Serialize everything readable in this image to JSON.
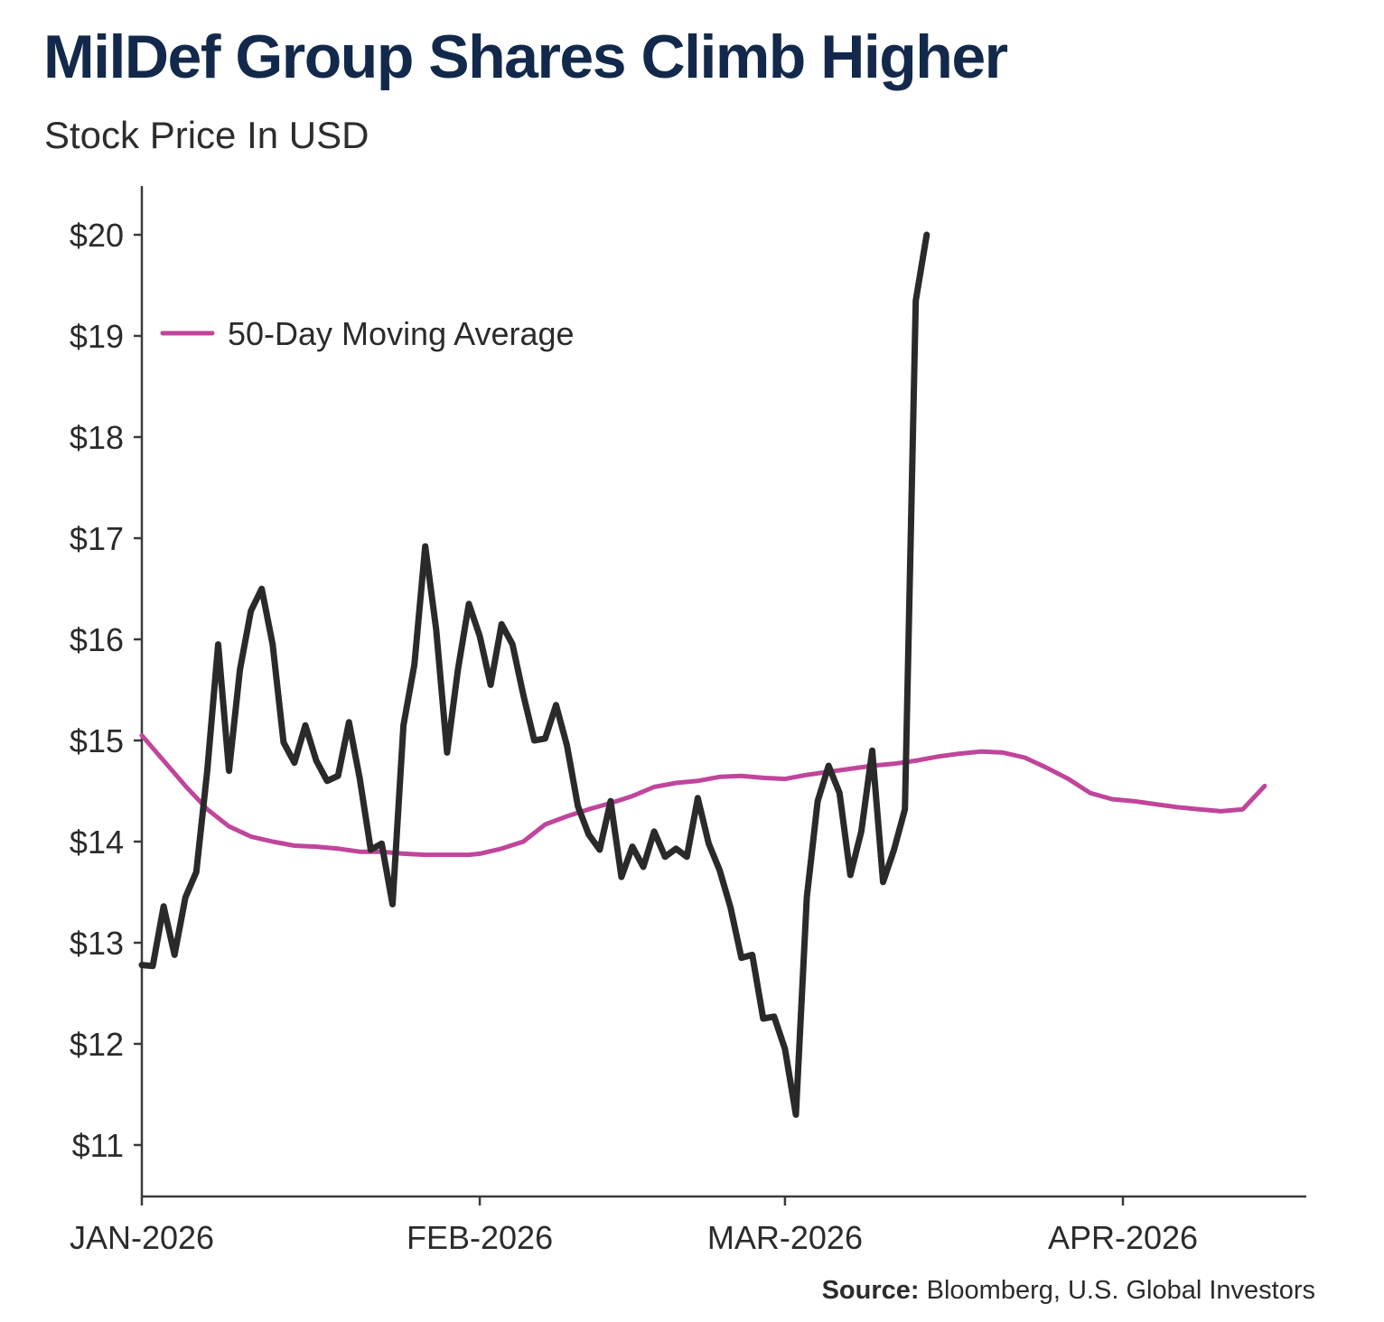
{
  "chart_data": {
    "type": "line",
    "title": "MilDef Group Shares Climb Higher",
    "subtitle": "Stock Price In USD",
    "xlabel": "",
    "ylabel": "",
    "x_tick_labels": [
      "JAN-2026",
      "FEB-2026",
      "MAR-2026",
      "APR-2026"
    ],
    "y_tick_labels": [
      "$11",
      "$12",
      "$13",
      "$14",
      "$15",
      "$16",
      "$17",
      "$18",
      "$19",
      "$20"
    ],
    "ylim": [
      10.5,
      20.5
    ],
    "grid": false,
    "legend": {
      "position": "top-left"
    },
    "series": [
      {
        "name": "",
        "color": "#2a2a2a",
        "points": [
          [
            "2026-01-01",
            12.78
          ],
          [
            "2026-01-02",
            12.77
          ],
          [
            "2026-01-03",
            13.36
          ],
          [
            "2026-01-04",
            12.88
          ],
          [
            "2026-01-05",
            13.45
          ],
          [
            "2026-01-06",
            13.7
          ],
          [
            "2026-01-07",
            14.7
          ],
          [
            "2026-01-08",
            15.95
          ],
          [
            "2026-01-09",
            14.7
          ],
          [
            "2026-01-10",
            15.7
          ],
          [
            "2026-01-11",
            16.28
          ],
          [
            "2026-01-12",
            16.5
          ],
          [
            "2026-01-13",
            15.95
          ],
          [
            "2026-01-14",
            14.98
          ],
          [
            "2026-01-15",
            14.78
          ],
          [
            "2026-01-16",
            15.15
          ],
          [
            "2026-01-17",
            14.8
          ],
          [
            "2026-01-18",
            14.6
          ],
          [
            "2026-01-19",
            14.65
          ],
          [
            "2026-01-20",
            15.18
          ],
          [
            "2026-01-21",
            14.62
          ],
          [
            "2026-01-22",
            13.92
          ],
          [
            "2026-01-23",
            13.98
          ],
          [
            "2026-01-24",
            13.38
          ],
          [
            "2026-01-25",
            15.15
          ],
          [
            "2026-01-26",
            15.75
          ],
          [
            "2026-01-27",
            16.92
          ],
          [
            "2026-01-28",
            16.1
          ],
          [
            "2026-01-29",
            14.88
          ],
          [
            "2026-01-30",
            15.7
          ],
          [
            "2026-01-31",
            16.35
          ],
          [
            "2026-02-01",
            16.03
          ],
          [
            "2026-02-02",
            15.55
          ],
          [
            "2026-02-03",
            16.15
          ],
          [
            "2026-02-04",
            15.95
          ],
          [
            "2026-02-05",
            15.45
          ],
          [
            "2026-02-06",
            15.0
          ],
          [
            "2026-02-07",
            15.02
          ],
          [
            "2026-02-08",
            15.35
          ],
          [
            "2026-02-09",
            14.95
          ],
          [
            "2026-02-10",
            14.35
          ],
          [
            "2026-02-11",
            14.07
          ],
          [
            "2026-02-12",
            13.92
          ],
          [
            "2026-02-13",
            14.4
          ],
          [
            "2026-02-14",
            13.65
          ],
          [
            "2026-02-15",
            13.95
          ],
          [
            "2026-02-16",
            13.75
          ],
          [
            "2026-02-17",
            14.1
          ],
          [
            "2026-02-18",
            13.85
          ],
          [
            "2026-02-19",
            13.93
          ],
          [
            "2026-02-20",
            13.85
          ],
          [
            "2026-02-21",
            14.43
          ],
          [
            "2026-02-22",
            13.98
          ],
          [
            "2026-02-23",
            13.72
          ],
          [
            "2026-02-24",
            13.35
          ],
          [
            "2026-02-25",
            12.85
          ],
          [
            "2026-02-26",
            12.88
          ],
          [
            "2026-02-27",
            12.25
          ],
          [
            "2026-02-28",
            12.27
          ],
          [
            "2026-03-01",
            11.95
          ],
          [
            "2026-03-02",
            11.3
          ],
          [
            "2026-03-03",
            13.45
          ],
          [
            "2026-03-04",
            14.4
          ],
          [
            "2026-03-05",
            14.75
          ],
          [
            "2026-03-06",
            14.48
          ],
          [
            "2026-03-07",
            13.67
          ],
          [
            "2026-03-08",
            14.1
          ],
          [
            "2026-03-09",
            14.9
          ],
          [
            "2026-03-10",
            13.6
          ],
          [
            "2026-03-11",
            13.92
          ],
          [
            "2026-03-12",
            14.32
          ],
          [
            "2026-03-13",
            19.35
          ],
          [
            "2026-03-14",
            20.0
          ]
        ]
      },
      {
        "name": "50-Day Moving Average",
        "color": "#c0459b",
        "points": [
          [
            "2026-01-01",
            15.05
          ],
          [
            "2026-01-03",
            14.8
          ],
          [
            "2026-01-05",
            14.55
          ],
          [
            "2026-01-07",
            14.32
          ],
          [
            "2026-01-09",
            14.15
          ],
          [
            "2026-01-11",
            14.05
          ],
          [
            "2026-01-13",
            14.0
          ],
          [
            "2026-01-15",
            13.96
          ],
          [
            "2026-01-17",
            13.95
          ],
          [
            "2026-01-19",
            13.93
          ],
          [
            "2026-01-21",
            13.9
          ],
          [
            "2026-01-23",
            13.9
          ],
          [
            "2026-01-25",
            13.88
          ],
          [
            "2026-01-27",
            13.87
          ],
          [
            "2026-01-29",
            13.87
          ],
          [
            "2026-01-31",
            13.87
          ],
          [
            "2026-02-01",
            13.88
          ],
          [
            "2026-02-03",
            13.93
          ],
          [
            "2026-02-05",
            14.0
          ],
          [
            "2026-02-07",
            14.17
          ],
          [
            "2026-02-09",
            14.25
          ],
          [
            "2026-02-11",
            14.32
          ],
          [
            "2026-02-13",
            14.38
          ],
          [
            "2026-02-15",
            14.45
          ],
          [
            "2026-02-17",
            14.54
          ],
          [
            "2026-02-19",
            14.58
          ],
          [
            "2026-02-21",
            14.6
          ],
          [
            "2026-02-23",
            14.64
          ],
          [
            "2026-02-25",
            14.65
          ],
          [
            "2026-02-27",
            14.63
          ],
          [
            "2026-03-01",
            14.62
          ],
          [
            "2026-03-03",
            14.66
          ],
          [
            "2026-03-05",
            14.69
          ],
          [
            "2026-03-07",
            14.72
          ],
          [
            "2026-03-09",
            14.75
          ],
          [
            "2026-03-11",
            14.77
          ],
          [
            "2026-03-13",
            14.8
          ],
          [
            "2026-03-15",
            14.84
          ],
          [
            "2026-03-17",
            14.87
          ],
          [
            "2026-03-19",
            14.89
          ],
          [
            "2026-03-21",
            14.88
          ],
          [
            "2026-03-23",
            14.83
          ],
          [
            "2026-03-25",
            14.73
          ],
          [
            "2026-03-27",
            14.62
          ],
          [
            "2026-03-29",
            14.48
          ],
          [
            "2026-03-31",
            14.42
          ],
          [
            "2026-04-02",
            14.4
          ],
          [
            "2026-04-04",
            14.37
          ],
          [
            "2026-04-06",
            14.34
          ],
          [
            "2026-04-08",
            14.32
          ],
          [
            "2026-04-10",
            14.3
          ],
          [
            "2026-04-12",
            14.32
          ],
          [
            "2026-04-14",
            14.55
          ]
        ]
      }
    ],
    "annotations": []
  },
  "source": {
    "label": "Source:",
    "text": " Bloomberg, U.S. Global Investors"
  }
}
